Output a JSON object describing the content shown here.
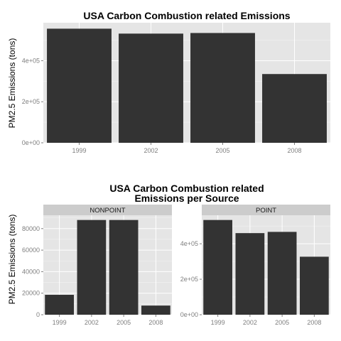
{
  "colors": {
    "bar": "#333333",
    "panel": "#e5e5e5",
    "strip": "#cccccc"
  },
  "chart_data": [
    {
      "type": "bar",
      "title": "USA Carbon Combustion related Emissions",
      "xlabel": "",
      "ylabel": "PM2.5 Emissions (tons)",
      "categories": [
        "1999",
        "2002",
        "2005",
        "2008"
      ],
      "values": [
        556000,
        532000,
        535000,
        335000
      ],
      "ylim": [
        0,
        585000
      ],
      "yticks": [
        0,
        200000,
        400000
      ],
      "ytick_labels": [
        "0e+00",
        "2e+05",
        "4e+05"
      ],
      "grid": true
    },
    {
      "type": "bar",
      "title": "USA Carbon Combustion related\nEmissions per Source",
      "xlabel": "",
      "ylabel": "PM2.5 Emissions (tons)",
      "categories": [
        "1999",
        "2002",
        "2005",
        "2008"
      ],
      "facets": [
        {
          "name": "NONPOINT",
          "values": [
            18500,
            88000,
            88000,
            8500
          ],
          "ylim": [
            0,
            92400
          ],
          "yticks": [
            0,
            20000,
            40000,
            60000,
            80000
          ],
          "ytick_labels": [
            "0",
            "20000",
            "40000",
            "60000",
            "80000"
          ]
        },
        {
          "name": "POINT",
          "values": [
            534000,
            460000,
            467000,
            327000
          ],
          "ylim": [
            0,
            560700
          ],
          "yticks": [
            0,
            200000,
            400000
          ],
          "ytick_labels": [
            "0e+00",
            "2e+05",
            "4e+05"
          ]
        }
      ],
      "grid": true
    }
  ]
}
